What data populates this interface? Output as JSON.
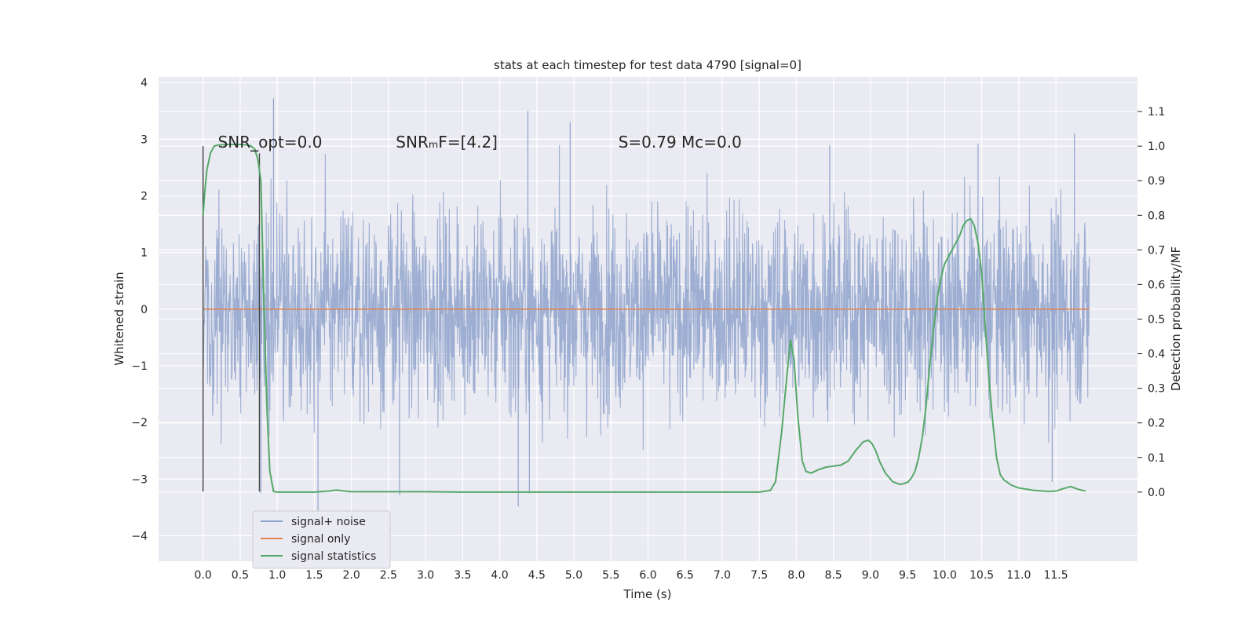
{
  "chart_data": {
    "type": "line",
    "title": "stats at each timestep for test data 4790 [signal=0]",
    "xlabel": "Time (s)",
    "ylabel": "Whitened strain",
    "ylabel_right": "Detection probability/MF",
    "xlim": [
      -0.6,
      12.6
    ],
    "ylim": [
      -4.45,
      4.1
    ],
    "ylim_right": [
      -0.2,
      1.2
    ],
    "x_ticks": [
      "0.0",
      "0.5",
      "1.0",
      "1.5",
      "2.0",
      "2.5",
      "3.0",
      "3.5",
      "4.0",
      "4.5",
      "5.0",
      "5.5",
      "6.0",
      "6.5",
      "7.0",
      "7.5",
      "8.0",
      "8.5",
      "9.0",
      "9.5",
      "10.0",
      "10.5",
      "11.0",
      "11.5"
    ],
    "y_ticks_left": [
      4,
      3,
      2,
      1,
      0,
      -1,
      -2,
      -3,
      -4
    ],
    "y_ticks_left_labels": [
      "4",
      "3",
      "2",
      "1",
      "0",
      "−1",
      "−2",
      "−3",
      "−4"
    ],
    "y_ticks_right": [
      "1.1",
      "1.0",
      "0.9",
      "0.8",
      "0.7",
      "0.6",
      "0.5",
      "0.4",
      "0.3",
      "0.2",
      "0.1",
      "0.0"
    ],
    "grid": true,
    "legend_position": "lower-left",
    "annotations": [
      {
        "name": "snr-opt",
        "text": "SNR_opt=0.0",
        "x": 0.2,
        "y": 2.95
      },
      {
        "name": "snr-mf",
        "text": "SNRₘF=[4.2]",
        "x": 2.6,
        "y": 2.95
      },
      {
        "name": "stat-s",
        "text": "S=0.79   Mc=0.0",
        "x": 5.6,
        "y": 2.95
      }
    ],
    "vertical_markers": [
      {
        "x": 0.0,
        "y_top": 2.88,
        "y_bottom": -3.22
      },
      {
        "x": 0.76,
        "y_top": 2.75,
        "y_bottom": -3.22
      }
    ],
    "series": [
      {
        "name": "signal+ noise",
        "color": "#8fa3cc",
        "axis": "left",
        "x_range": [
          0.0,
          11.95
        ],
        "typical_amplitude": 1.3,
        "peaks": [
          {
            "x": 0.95,
            "y": 3.72
          },
          {
            "x": 1.55,
            "y": -3.62
          },
          {
            "x": 4.25,
            "y": -3.48
          },
          {
            "x": 4.4,
            "y": -3.25
          },
          {
            "x": 4.38,
            "y": 3.5
          },
          {
            "x": 4.95,
            "y": 3.3
          },
          {
            "x": 0.78,
            "y": -3.25
          },
          {
            "x": 2.65,
            "y": -3.28
          },
          {
            "x": 11.45,
            "y": -3.05
          },
          {
            "x": 11.75,
            "y": 3.1
          },
          {
            "x": 8.45,
            "y": 2.9
          },
          {
            "x": 10.45,
            "y": 2.92
          }
        ]
      },
      {
        "name": "signal only",
        "color": "#dd8452",
        "axis": "left",
        "x": [
          0.0,
          11.95
        ],
        "y": [
          0.0,
          0.0
        ]
      },
      {
        "name": "signal statistics",
        "color": "#55a868",
        "axis": "right",
        "x": [
          0.0,
          0.02,
          0.05,
          0.1,
          0.15,
          0.2,
          0.3,
          0.4,
          0.5,
          0.6,
          0.65,
          0.7,
          0.74,
          0.78,
          0.82,
          0.86,
          0.9,
          0.95,
          1.0,
          1.2,
          1.5,
          1.7,
          1.8,
          1.9,
          2.0,
          2.5,
          3.0,
          3.5,
          4.0,
          5.0,
          6.0,
          7.0,
          7.5,
          7.65,
          7.72,
          7.8,
          7.87,
          7.92,
          7.97,
          8.02,
          8.08,
          8.13,
          8.2,
          8.3,
          8.4,
          8.5,
          8.6,
          8.7,
          8.8,
          8.9,
          8.97,
          9.02,
          9.07,
          9.12,
          9.2,
          9.3,
          9.4,
          9.5,
          9.55,
          9.6,
          9.65,
          9.7,
          9.75,
          9.8,
          9.85,
          9.9,
          9.95,
          10.0,
          10.05,
          10.1,
          10.2,
          10.25,
          10.3,
          10.35,
          10.4,
          10.45,
          10.5,
          10.55,
          10.6,
          10.65,
          10.7,
          10.75,
          10.8,
          10.9,
          11.0,
          11.2,
          11.4,
          11.5,
          11.6,
          11.7,
          11.8,
          11.9
        ],
        "y": [
          0.8,
          0.86,
          0.93,
          0.98,
          1.0,
          1.003,
          1.005,
          1.005,
          1.005,
          1.003,
          1.0,
          0.99,
          0.96,
          0.9,
          0.55,
          0.25,
          0.06,
          0.002,
          0.0,
          0.0,
          0.0,
          0.003,
          0.006,
          0.003,
          0.001,
          0.001,
          0.001,
          0.0,
          0.0,
          0.0,
          0.0,
          0.0,
          0.0,
          0.005,
          0.03,
          0.17,
          0.33,
          0.44,
          0.38,
          0.22,
          0.09,
          0.06,
          0.055,
          0.065,
          0.072,
          0.075,
          0.078,
          0.09,
          0.12,
          0.145,
          0.15,
          0.14,
          0.12,
          0.09,
          0.055,
          0.03,
          0.022,
          0.028,
          0.04,
          0.06,
          0.1,
          0.16,
          0.25,
          0.37,
          0.47,
          0.56,
          0.62,
          0.66,
          0.68,
          0.7,
          0.74,
          0.77,
          0.785,
          0.79,
          0.77,
          0.72,
          0.63,
          0.47,
          0.32,
          0.2,
          0.1,
          0.05,
          0.035,
          0.02,
          0.012,
          0.005,
          0.002,
          0.003,
          0.01,
          0.016,
          0.008,
          0.003
        ]
      }
    ]
  }
}
